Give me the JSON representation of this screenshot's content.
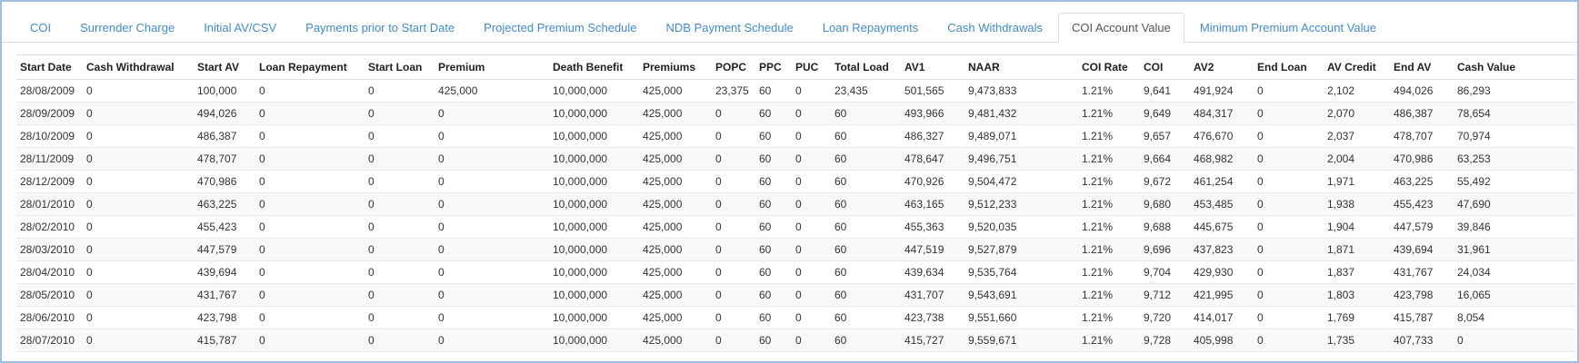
{
  "tabs": {
    "active": "COI Account Value",
    "items": [
      {
        "label": "COI"
      },
      {
        "label": "Surrender Charge"
      },
      {
        "label": "Initial AV/CSV"
      },
      {
        "label": "Payments prior to Start Date"
      },
      {
        "label": "Projected Premium Schedule"
      },
      {
        "label": "NDB Payment Schedule"
      },
      {
        "label": "Loan Repayments"
      },
      {
        "label": "Cash Withdrawals"
      },
      {
        "label": "COI Account Value"
      },
      {
        "label": "Minimum Premium Account Value"
      }
    ]
  },
  "table": {
    "headers": [
      "Start Date",
      "Cash Withdrawal",
      "Start AV",
      "Loan Repayment",
      "Start Loan",
      "Premium",
      "Death Benefit",
      "Premiums",
      "POPC",
      "PPC",
      "PUC",
      "Total Load",
      "AV1",
      "NAAR",
      "COI Rate",
      "COI",
      "AV2",
      "End Loan",
      "AV Credit",
      "End AV",
      "Cash Value"
    ],
    "rows": [
      [
        "28/08/2009",
        "0",
        "100,000",
        "0",
        "0",
        "425,000",
        "10,000,000",
        "425,000",
        "23,375",
        "60",
        "0",
        "23,435",
        "501,565",
        "9,473,833",
        "1.21%",
        "9,641",
        "491,924",
        "0",
        "2,102",
        "494,026",
        "86,293"
      ],
      [
        "28/09/2009",
        "0",
        "494,026",
        "0",
        "0",
        "0",
        "10,000,000",
        "425,000",
        "0",
        "60",
        "0",
        "60",
        "493,966",
        "9,481,432",
        "1.21%",
        "9,649",
        "484,317",
        "0",
        "2,070",
        "486,387",
        "78,654"
      ],
      [
        "28/10/2009",
        "0",
        "486,387",
        "0",
        "0",
        "0",
        "10,000,000",
        "425,000",
        "0",
        "60",
        "0",
        "60",
        "486,327",
        "9,489,071",
        "1.21%",
        "9,657",
        "476,670",
        "0",
        "2,037",
        "478,707",
        "70,974"
      ],
      [
        "28/11/2009",
        "0",
        "478,707",
        "0",
        "0",
        "0",
        "10,000,000",
        "425,000",
        "0",
        "60",
        "0",
        "60",
        "478,647",
        "9,496,751",
        "1.21%",
        "9,664",
        "468,982",
        "0",
        "2,004",
        "470,986",
        "63,253"
      ],
      [
        "28/12/2009",
        "0",
        "470,986",
        "0",
        "0",
        "0",
        "10,000,000",
        "425,000",
        "0",
        "60",
        "0",
        "60",
        "470,926",
        "9,504,472",
        "1.21%",
        "9,672",
        "461,254",
        "0",
        "1,971",
        "463,225",
        "55,492"
      ],
      [
        "28/01/2010",
        "0",
        "463,225",
        "0",
        "0",
        "0",
        "10,000,000",
        "425,000",
        "0",
        "60",
        "0",
        "60",
        "463,165",
        "9,512,233",
        "1.21%",
        "9,680",
        "453,485",
        "0",
        "1,938",
        "455,423",
        "47,690"
      ],
      [
        "28/02/2010",
        "0",
        "455,423",
        "0",
        "0",
        "0",
        "10,000,000",
        "425,000",
        "0",
        "60",
        "0",
        "60",
        "455,363",
        "9,520,035",
        "1.21%",
        "9,688",
        "445,675",
        "0",
        "1,904",
        "447,579",
        "39,846"
      ],
      [
        "28/03/2010",
        "0",
        "447,579",
        "0",
        "0",
        "0",
        "10,000,000",
        "425,000",
        "0",
        "60",
        "0",
        "60",
        "447,519",
        "9,527,879",
        "1.21%",
        "9,696",
        "437,823",
        "0",
        "1,871",
        "439,694",
        "31,961"
      ],
      [
        "28/04/2010",
        "0",
        "439,694",
        "0",
        "0",
        "0",
        "10,000,000",
        "425,000",
        "0",
        "60",
        "0",
        "60",
        "439,634",
        "9,535,764",
        "1.21%",
        "9,704",
        "429,930",
        "0",
        "1,837",
        "431,767",
        "24,034"
      ],
      [
        "28/05/2010",
        "0",
        "431,767",
        "0",
        "0",
        "0",
        "10,000,000",
        "425,000",
        "0",
        "60",
        "0",
        "60",
        "431,707",
        "9,543,691",
        "1.21%",
        "9,712",
        "421,995",
        "0",
        "1,803",
        "423,798",
        "16,065"
      ],
      [
        "28/06/2010",
        "0",
        "423,798",
        "0",
        "0",
        "0",
        "10,000,000",
        "425,000",
        "0",
        "60",
        "0",
        "60",
        "423,738",
        "9,551,660",
        "1.21%",
        "9,720",
        "414,017",
        "0",
        "1,769",
        "415,787",
        "8,054"
      ],
      [
        "28/07/2010",
        "0",
        "415,787",
        "0",
        "0",
        "0",
        "10,000,000",
        "425,000",
        "0",
        "60",
        "0",
        "60",
        "415,727",
        "9,559,671",
        "1.21%",
        "9,728",
        "405,998",
        "0",
        "1,735",
        "407,733",
        "0"
      ]
    ]
  },
  "colors": {
    "tab_link": "#428bca",
    "tab_active_text": "#555555",
    "frame_border": "#9dc0e0",
    "divider": "#dddddd",
    "row_stripe": "#f7f8f9",
    "cell_text": "#333333"
  }
}
